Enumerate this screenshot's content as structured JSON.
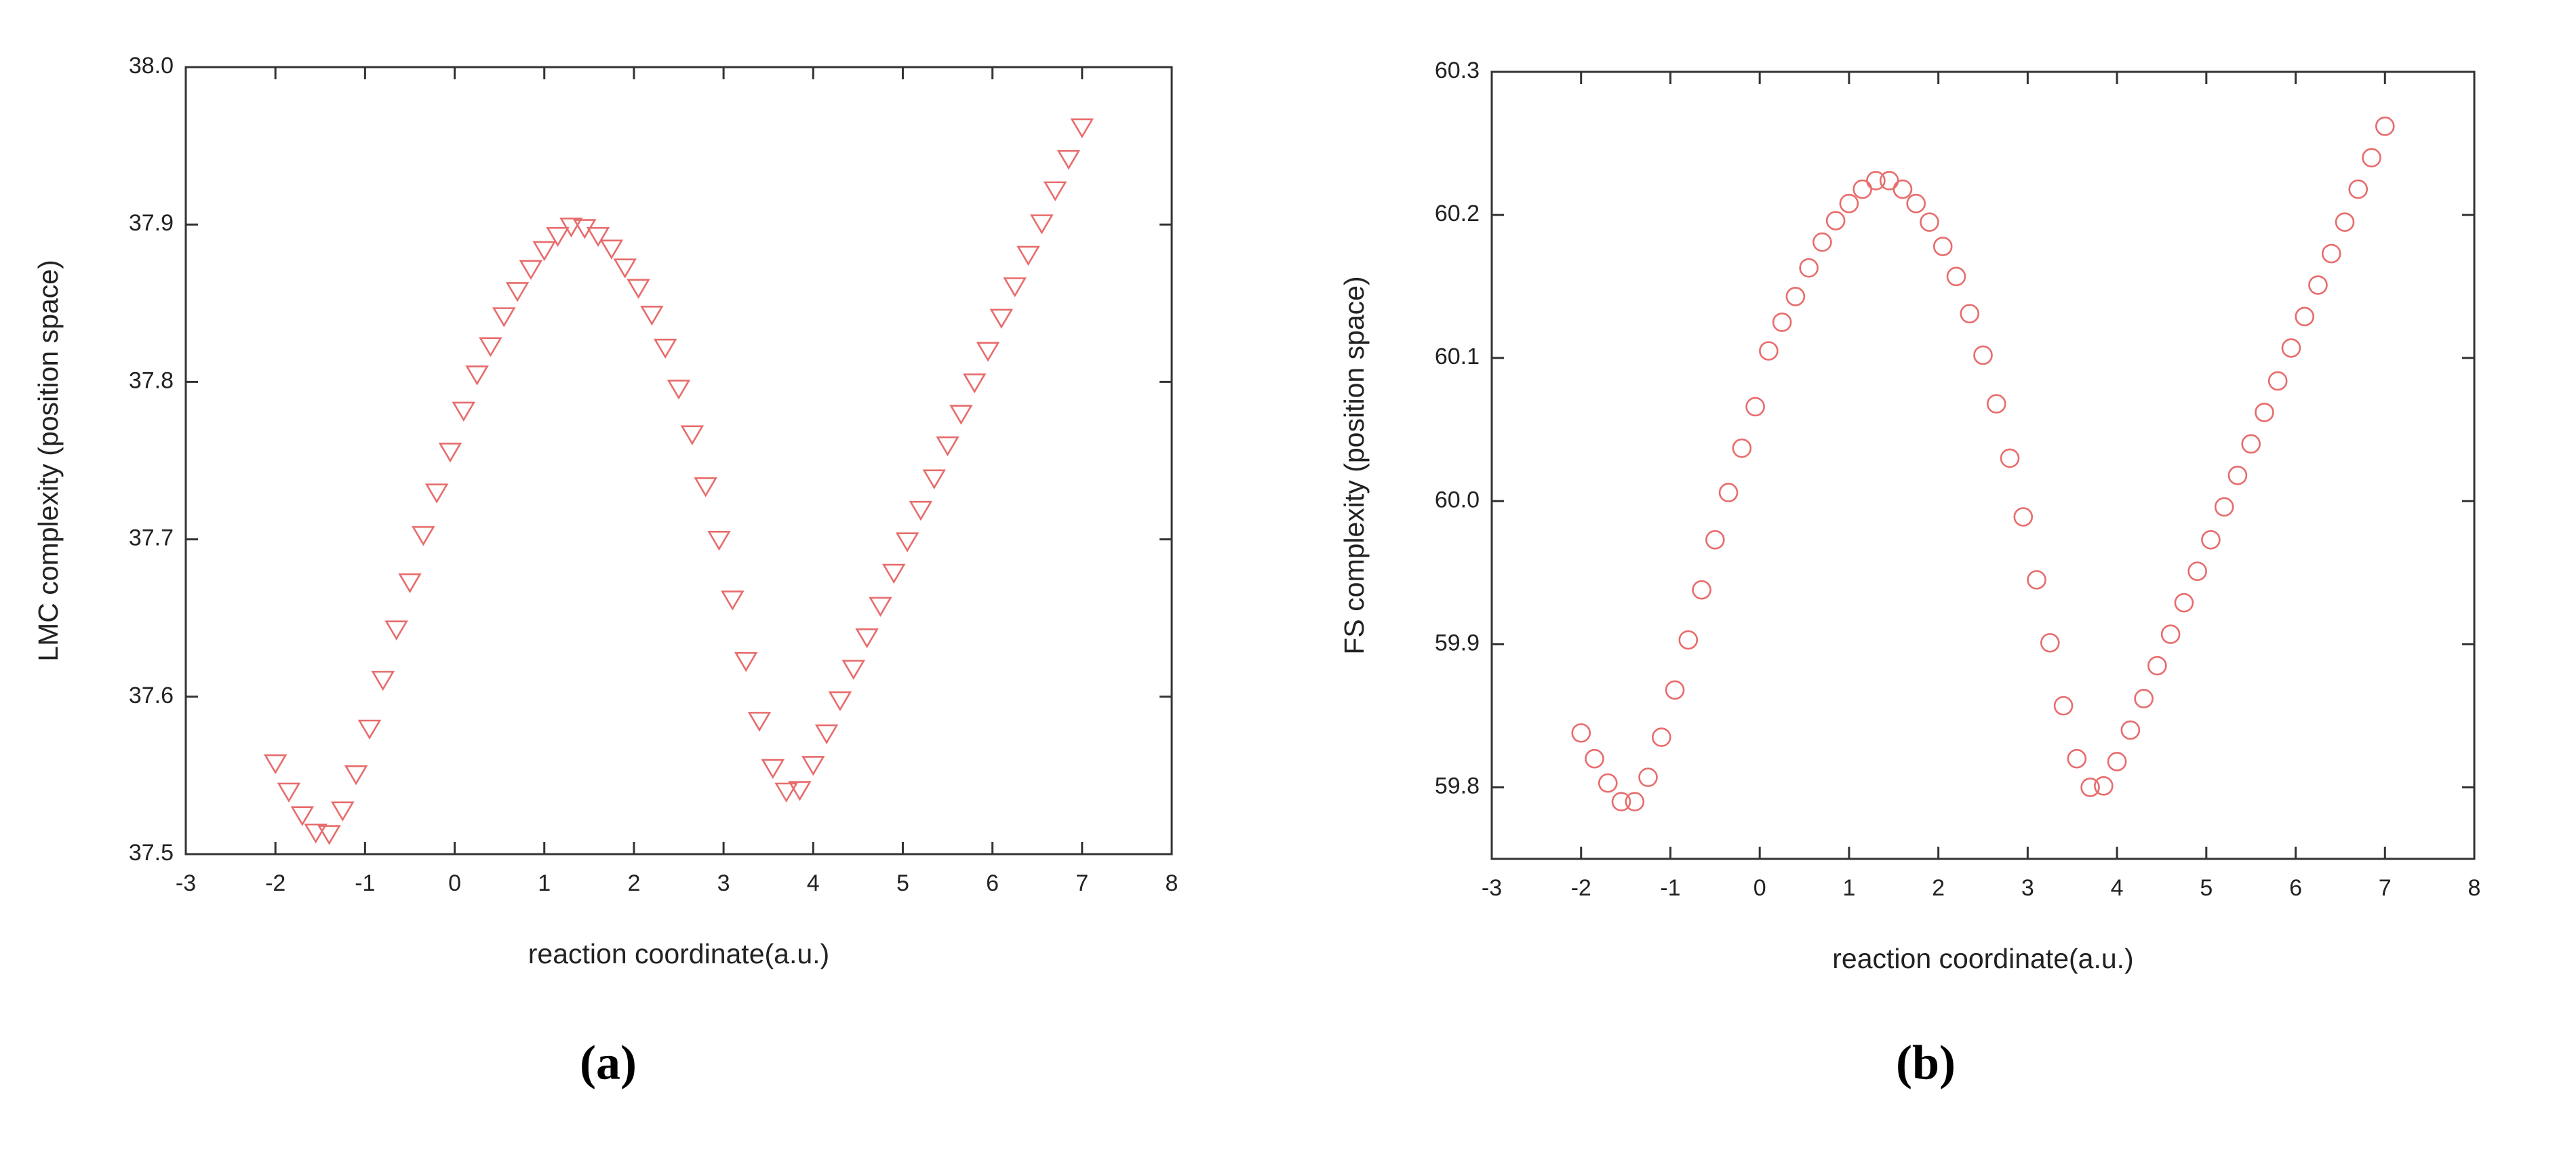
{
  "chart_data": [
    {
      "type": "scatter",
      "marker": "triangle-down",
      "color": "#e86c6c",
      "panel": "(a)",
      "xlabel": "reaction coordinate(a.u.)",
      "ylabel": "LMC complexity (position space)",
      "x": [
        -2,
        -1.85,
        -1.7,
        -1.55,
        -1.4,
        -1.25,
        -1.1,
        -0.95,
        -0.8,
        -0.65,
        -0.5,
        -0.35,
        -0.2,
        -0.05,
        0.1,
        0.25,
        0.4,
        0.55,
        0.7,
        0.85,
        1,
        1.15,
        1.3,
        1.45,
        1.6,
        1.75,
        1.9,
        2.05,
        2.2,
        2.35,
        2.5,
        2.65,
        2.8,
        2.95,
        3.1,
        3.25,
        3.4,
        3.55,
        3.7,
        3.85,
        4,
        4.15,
        4.3,
        4.45,
        4.6,
        4.75,
        4.9,
        5.05,
        5.2,
        5.35,
        5.5,
        5.65,
        5.8,
        5.95,
        6.1,
        6.25,
        6.4,
        6.55,
        6.7,
        6.85,
        7
      ],
      "values": [
        37.558,
        37.54,
        37.525,
        37.514,
        37.513,
        37.528,
        37.551,
        37.58,
        37.611,
        37.643,
        37.673,
        37.703,
        37.73,
        37.756,
        37.782,
        37.805,
        37.823,
        37.842,
        37.858,
        37.872,
        37.884,
        37.893,
        37.899,
        37.898,
        37.893,
        37.885,
        37.873,
        37.86,
        37.843,
        37.822,
        37.796,
        37.767,
        37.734,
        37.7,
        37.662,
        37.623,
        37.585,
        37.555,
        37.54,
        37.541,
        37.557,
        37.577,
        37.598,
        37.618,
        37.638,
        37.658,
        37.679,
        37.699,
        37.719,
        37.739,
        37.76,
        37.78,
        37.8,
        37.82,
        37.841,
        37.861,
        37.881,
        37.901,
        37.922,
        37.942,
        37.962
      ],
      "xlim": [
        -3,
        8
      ],
      "xticks": [
        -3,
        -2,
        -1,
        0,
        1,
        2,
        3,
        4,
        5,
        6,
        7,
        8
      ],
      "ylim": [
        37.5,
        38.0
      ],
      "yticks": [
        {
          "value": 37.5,
          "label": "37.5"
        },
        {
          "value": 37.6,
          "label": "37.6"
        },
        {
          "value": 37.7,
          "label": "37.7"
        },
        {
          "value": 37.8,
          "label": "37.8"
        },
        {
          "value": 37.9,
          "label": "37.9"
        },
        {
          "value": 38.0,
          "label": "38.0"
        }
      ]
    },
    {
      "type": "scatter",
      "marker": "circle",
      "color": "#e86c6c",
      "panel": "(b)",
      "xlabel": "reaction coordinate(a.u.)",
      "ylabel": "FS complexity (position space)",
      "x": [
        -2,
        -1.85,
        -1.7,
        -1.55,
        -1.4,
        -1.25,
        -1.1,
        -0.95,
        -0.8,
        -0.65,
        -0.5,
        -0.35,
        -0.2,
        -0.05,
        0.1,
        0.25,
        0.4,
        0.55,
        0.7,
        0.85,
        1,
        1.15,
        1.3,
        1.45,
        1.6,
        1.75,
        1.9,
        2.05,
        2.2,
        2.35,
        2.5,
        2.65,
        2.8,
        2.95,
        3.1,
        3.25,
        3.4,
        3.55,
        3.7,
        3.85,
        4,
        4.15,
        4.3,
        4.45,
        4.6,
        4.75,
        4.9,
        5.05,
        5.2,
        5.35,
        5.5,
        5.65,
        5.8,
        5.95,
        6.1,
        6.25,
        6.4,
        6.55,
        6.7,
        6.85,
        7
      ],
      "values": [
        59.838,
        59.82,
        59.803,
        59.79,
        59.79,
        59.807,
        59.835,
        59.868,
        59.903,
        59.938,
        59.973,
        60.006,
        60.037,
        60.066,
        60.105,
        60.125,
        60.143,
        60.163,
        60.181,
        60.196,
        60.208,
        60.218,
        60.224,
        60.224,
        60.218,
        60.208,
        60.195,
        60.178,
        60.157,
        60.131,
        60.102,
        60.068,
        60.03,
        59.989,
        59.945,
        59.901,
        59.857,
        59.82,
        59.8,
        59.801,
        59.818,
        59.84,
        59.862,
        59.885,
        59.907,
        59.929,
        59.951,
        59.973,
        59.996,
        60.018,
        60.04,
        60.062,
        60.084,
        60.107,
        60.129,
        60.151,
        60.173,
        60.195,
        60.218,
        60.24,
        60.262
      ],
      "xlim": [
        -3,
        8
      ],
      "xticks": [
        -3,
        -2,
        -1,
        0,
        1,
        2,
        3,
        4,
        5,
        6,
        7,
        8
      ],
      "ylim": [
        59.75,
        60.3
      ],
      "yticks": [
        {
          "value": 59.8,
          "label": "59.8"
        },
        {
          "value": 59.9,
          "label": "59.9"
        },
        {
          "value": 60.0,
          "label": "60.0"
        },
        {
          "value": 60.1,
          "label": "60.1"
        },
        {
          "value": 60.2,
          "label": "60.2"
        },
        {
          "value": 60.3,
          "label": "60.3"
        }
      ]
    }
  ]
}
